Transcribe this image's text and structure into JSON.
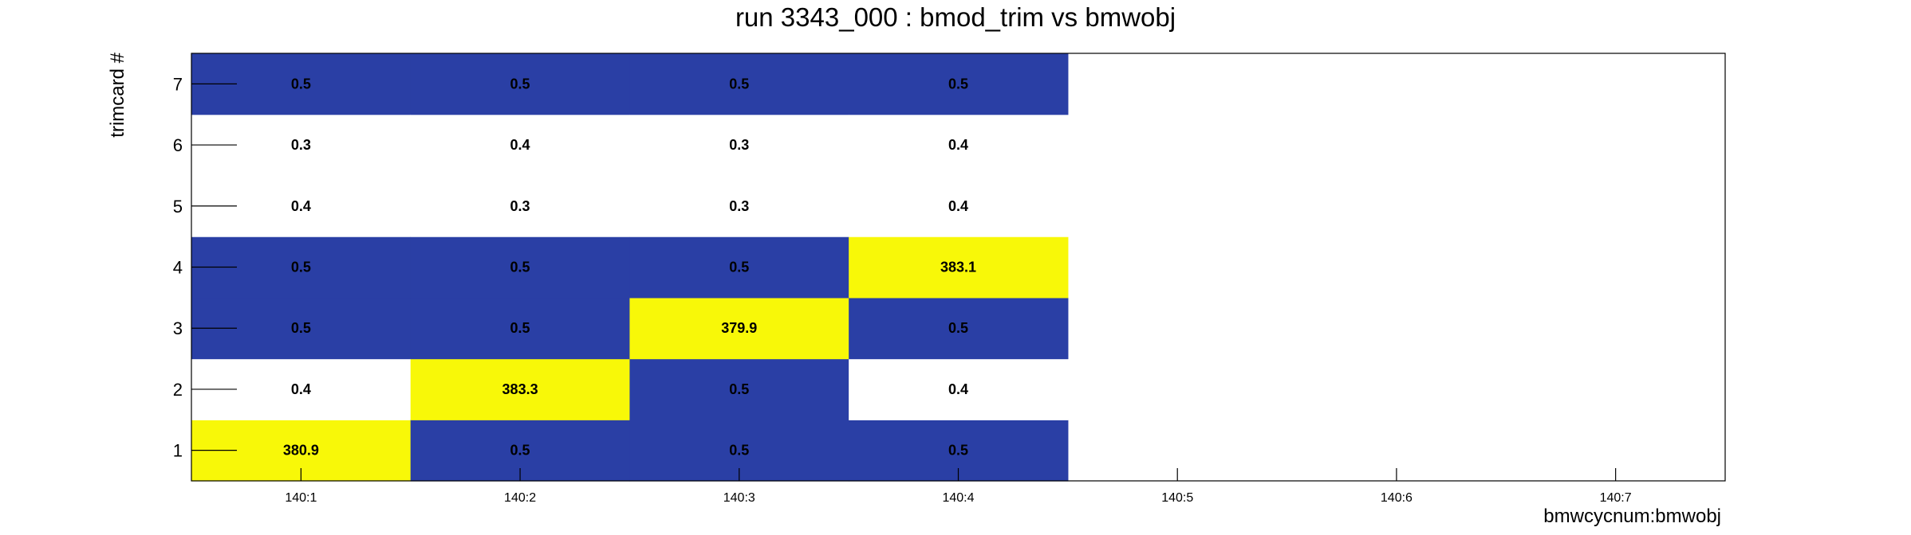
{
  "chart_data": {
    "type": "heatmap",
    "title": "run 3343_000 : bmod_trim vs bmwobj",
    "xlabel": "bmwcycnum:bmwobj",
    "ylabel": "trimcard #",
    "x_categories": [
      "140:1",
      "140:2",
      "140:3",
      "140:4",
      "140:5",
      "140:6",
      "140:7"
    ],
    "y_categories": [
      "1",
      "2",
      "3",
      "4",
      "5",
      "6",
      "7"
    ],
    "grid": false,
    "colors": {
      "low": "#2a3fa5",
      "high": "#f8f808",
      "empty": "#ffffff"
    },
    "cells": [
      {
        "x": "140:1",
        "y": "1",
        "value": 380.9,
        "label": "380.9"
      },
      {
        "x": "140:1",
        "y": "2",
        "value": 0.4,
        "label": "0.4"
      },
      {
        "x": "140:1",
        "y": "3",
        "value": 0.5,
        "label": "0.5"
      },
      {
        "x": "140:1",
        "y": "4",
        "value": 0.5,
        "label": "0.5"
      },
      {
        "x": "140:1",
        "y": "5",
        "value": 0.4,
        "label": "0.4"
      },
      {
        "x": "140:1",
        "y": "6",
        "value": 0.3,
        "label": "0.3"
      },
      {
        "x": "140:1",
        "y": "7",
        "value": 0.5,
        "label": "0.5"
      },
      {
        "x": "140:2",
        "y": "1",
        "value": 0.5,
        "label": "0.5"
      },
      {
        "x": "140:2",
        "y": "2",
        "value": 383.3,
        "label": "383.3"
      },
      {
        "x": "140:2",
        "y": "3",
        "value": 0.5,
        "label": "0.5"
      },
      {
        "x": "140:2",
        "y": "4",
        "value": 0.5,
        "label": "0.5"
      },
      {
        "x": "140:2",
        "y": "5",
        "value": 0.3,
        "label": "0.3"
      },
      {
        "x": "140:2",
        "y": "6",
        "value": 0.4,
        "label": "0.4"
      },
      {
        "x": "140:2",
        "y": "7",
        "value": 0.5,
        "label": "0.5"
      },
      {
        "x": "140:3",
        "y": "1",
        "value": 0.5,
        "label": "0.5"
      },
      {
        "x": "140:3",
        "y": "2",
        "value": 0.5,
        "label": "0.5"
      },
      {
        "x": "140:3",
        "y": "3",
        "value": 379.9,
        "label": "379.9"
      },
      {
        "x": "140:3",
        "y": "4",
        "value": 0.5,
        "label": "0.5"
      },
      {
        "x": "140:3",
        "y": "5",
        "value": 0.3,
        "label": "0.3"
      },
      {
        "x": "140:3",
        "y": "6",
        "value": 0.3,
        "label": "0.3"
      },
      {
        "x": "140:3",
        "y": "7",
        "value": 0.5,
        "label": "0.5"
      },
      {
        "x": "140:4",
        "y": "1",
        "value": 0.5,
        "label": "0.5"
      },
      {
        "x": "140:4",
        "y": "2",
        "value": 0.4,
        "label": "0.4"
      },
      {
        "x": "140:4",
        "y": "3",
        "value": 0.5,
        "label": "0.5"
      },
      {
        "x": "140:4",
        "y": "4",
        "value": 383.1,
        "label": "383.1"
      },
      {
        "x": "140:4",
        "y": "5",
        "value": 0.4,
        "label": "0.4"
      },
      {
        "x": "140:4",
        "y": "6",
        "value": 0.4,
        "label": "0.4"
      },
      {
        "x": "140:4",
        "y": "7",
        "value": 0.5,
        "label": "0.5"
      }
    ]
  }
}
